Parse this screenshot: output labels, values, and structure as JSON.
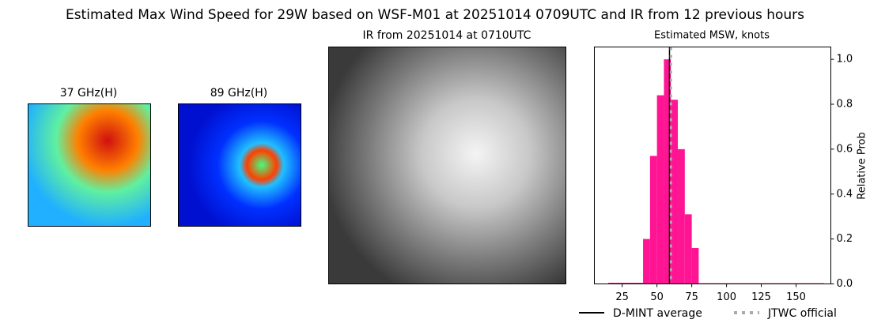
{
  "title": "Estimated Max Wind Speed for 29W based on WSF-M01 at 20251014 0709UTC and IR from 12 previous hours",
  "panels": [
    {
      "title": "37 GHz(H)"
    },
    {
      "title": "89 GHz(H)"
    },
    {
      "title": "IR from 20251014 at 0710UTC"
    }
  ],
  "chart_data": {
    "type": "histogram",
    "title": "Estimated MSW, knots",
    "y_label": "Relative Prob",
    "y_axis_side": "right",
    "bins": [
      15,
      20,
      25,
      30,
      35,
      40,
      45,
      50,
      55,
      60,
      65,
      70,
      75,
      80,
      85,
      90,
      95,
      100,
      105,
      110,
      115,
      120,
      125,
      130,
      135,
      140,
      145,
      150,
      155,
      160,
      165,
      170
    ],
    "values": [
      0.005,
      0.005,
      0.005,
      0.005,
      0.005,
      0.2,
      0.57,
      0.84,
      1.0,
      0.82,
      0.6,
      0.31,
      0.16,
      0.003,
      0.003,
      0.003,
      0.003,
      0.003,
      0.003,
      0.003,
      0.003,
      0.003,
      0.003,
      0.003,
      0.003,
      0.003,
      0.003,
      0.003,
      0.003,
      0.003,
      0.003
    ],
    "color": "#ff1493",
    "xlim": [
      5,
      175
    ],
    "ylim": [
      0,
      1.055
    ],
    "xticks": [
      25,
      50,
      75,
      100,
      125,
      150
    ],
    "yticks": [
      {
        "value": 0,
        "label": "0.0"
      },
      0.2,
      0.4,
      0.6,
      0.8,
      {
        "value": 1,
        "label": "1.0"
      }
    ],
    "markers": [
      {
        "name": "D-MINT average",
        "value": 59,
        "color": "#000000",
        "dash": "none"
      },
      {
        "name": "JTWC official",
        "value": 60,
        "color": "#aaaaaa",
        "dash": "4,6"
      }
    ]
  }
}
